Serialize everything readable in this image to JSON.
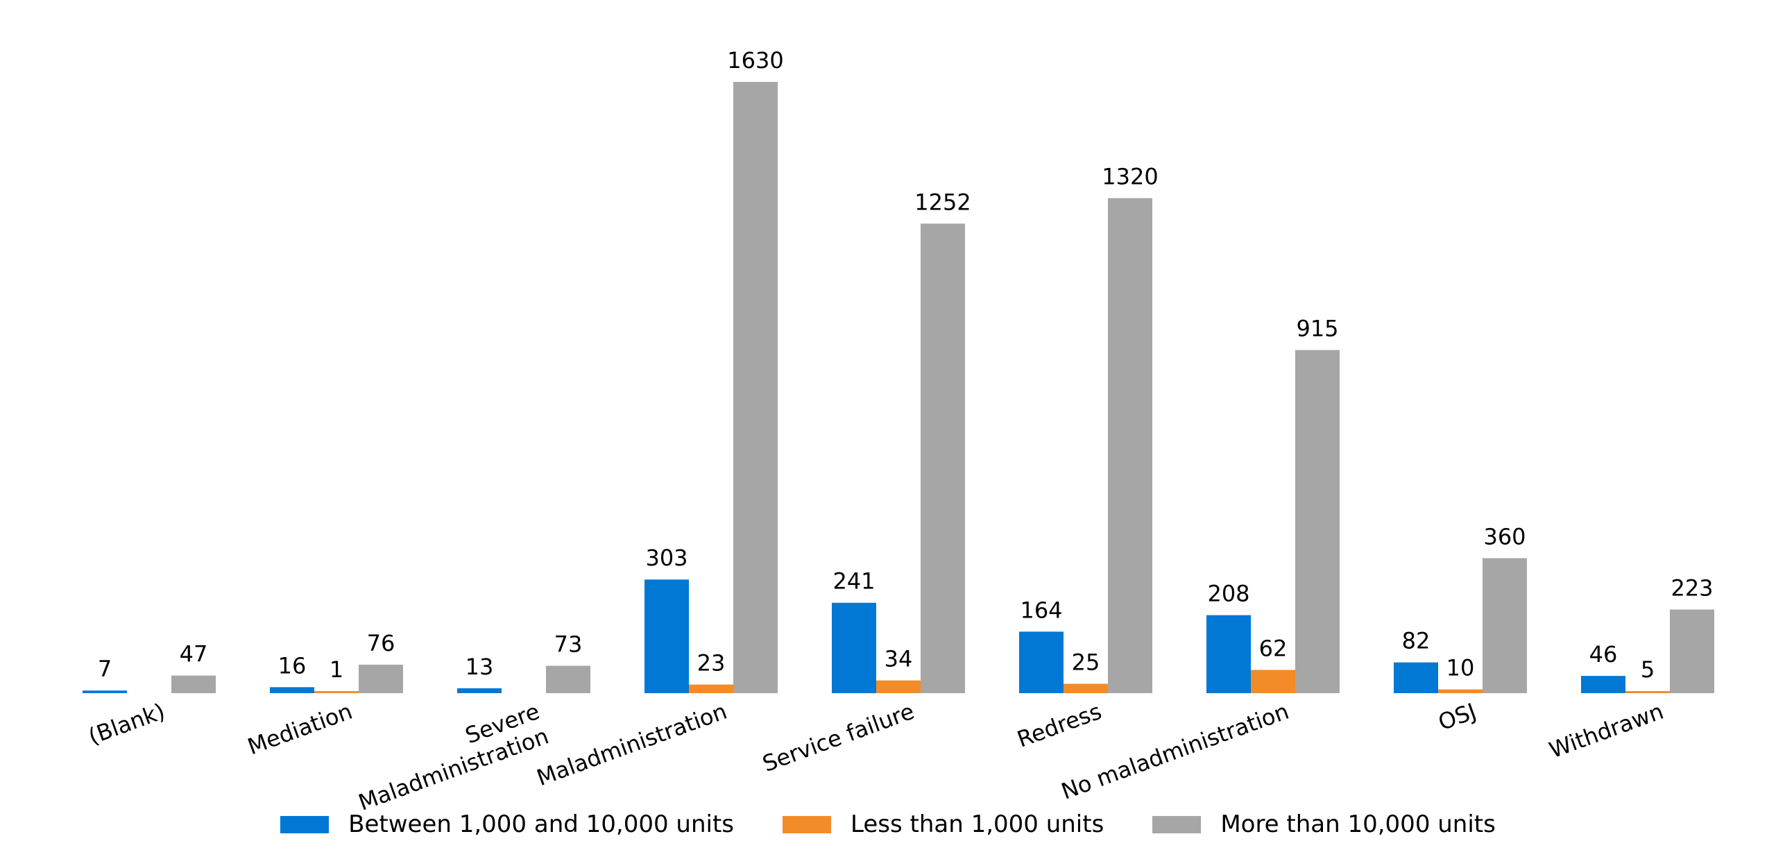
{
  "chart_data": {
    "type": "bar",
    "categories": [
      "(Blank)",
      "Mediation",
      "Severe\nMaladministration",
      "Maladministration",
      "Service failure",
      "Redress",
      "No maladministration",
      "OSJ",
      "Withdrawn"
    ],
    "series": [
      {
        "name": "Between 1,000 and 10,000 units",
        "color": "#0078d4",
        "values": [
          7,
          16,
          13,
          303,
          241,
          164,
          208,
          82,
          46
        ]
      },
      {
        "name": "Less than 1,000 units",
        "color": "#f28c28",
        "values": [
          null,
          1,
          null,
          23,
          34,
          25,
          62,
          10,
          5
        ]
      },
      {
        "name": "More than 10,000 units",
        "color": "#a6a6a6",
        "values": [
          47,
          76,
          73,
          1630,
          1252,
          1320,
          915,
          360,
          223
        ]
      }
    ],
    "ylim": [
      0,
      1630
    ],
    "grid": false,
    "legend_position": "bottom"
  }
}
